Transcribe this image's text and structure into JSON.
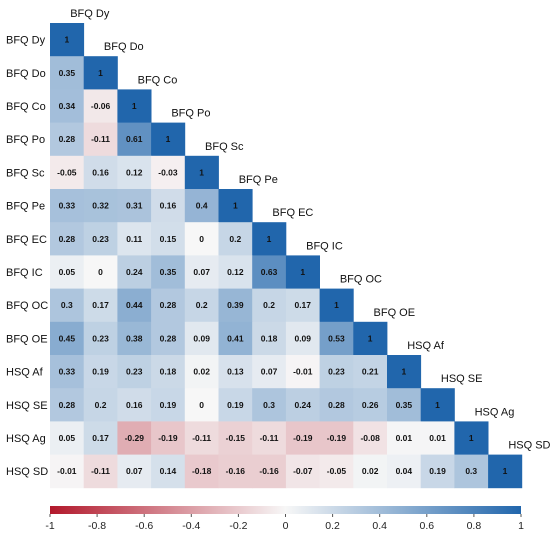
{
  "chart_data": {
    "type": "heatmap",
    "variables": [
      "BFQ Dy",
      "BFQ Do",
      "BFQ Co",
      "BFQ Po",
      "BFQ Sc",
      "BFQ Pe",
      "BFQ EC",
      "BFQ IC",
      "BFQ OC",
      "BFQ OE",
      "HSQ Af",
      "HSQ SE",
      "HSQ Ag",
      "HSQ SD"
    ],
    "values": [
      [
        "1"
      ],
      [
        "0.35",
        "1"
      ],
      [
        "0.34",
        "-0.06",
        "1"
      ],
      [
        "0.28",
        "-0.11",
        "0.61",
        "1"
      ],
      [
        "-0.05",
        "0.16",
        "0.12",
        "-0.03",
        "1"
      ],
      [
        "0.33",
        "0.32",
        "0.31",
        "0.16",
        "0.4",
        "1"
      ],
      [
        "0.28",
        "0.23",
        "0.11",
        "0.15",
        "0",
        "0.2",
        "1"
      ],
      [
        "0.05",
        "0",
        "0.24",
        "0.35",
        "0.07",
        "0.12",
        "0.63",
        "1"
      ],
      [
        "0.3",
        "0.17",
        "0.44",
        "0.28",
        "0.2",
        "0.39",
        "0.2",
        "0.17",
        "1"
      ],
      [
        "0.45",
        "0.23",
        "0.38",
        "0.28",
        "0.09",
        "0.41",
        "0.18",
        "0.09",
        "0.53",
        "1"
      ],
      [
        "0.33",
        "0.19",
        "0.23",
        "0.18",
        "0.02",
        "0.13",
        "0.07",
        "-0.01",
        "0.23",
        "0.21",
        "1"
      ],
      [
        "0.28",
        "0.2",
        "0.16",
        "0.19",
        "0",
        "0.19",
        "0.3",
        "0.24",
        "0.28",
        "0.26",
        "0.35",
        "1"
      ],
      [
        "0.05",
        "0.17",
        "-0.29",
        "-0.19",
        "-0.11",
        "-0.15",
        "-0.11",
        "-0.19",
        "-0.19",
        "-0.08",
        "0.01",
        "0.01",
        "1"
      ],
      [
        "-0.01",
        "-0.11",
        "0.07",
        "0.14",
        "-0.18",
        "-0.16",
        "-0.16",
        "-0.07",
        "-0.05",
        "0.02",
        "0.04",
        "0.19",
        "0.3",
        "1"
      ]
    ],
    "colorbar": {
      "ticks": [
        "-1",
        "-0.8",
        "-0.6",
        "-0.4",
        "-0.2",
        "0",
        "0.2",
        "0.4",
        "0.6",
        "0.8",
        "1"
      ],
      "range": [
        -1,
        1
      ]
    },
    "colors": {
      "negative": "#b2182b",
      "neutral": "#f7f7f7",
      "positive": "#2166ac"
    }
  }
}
